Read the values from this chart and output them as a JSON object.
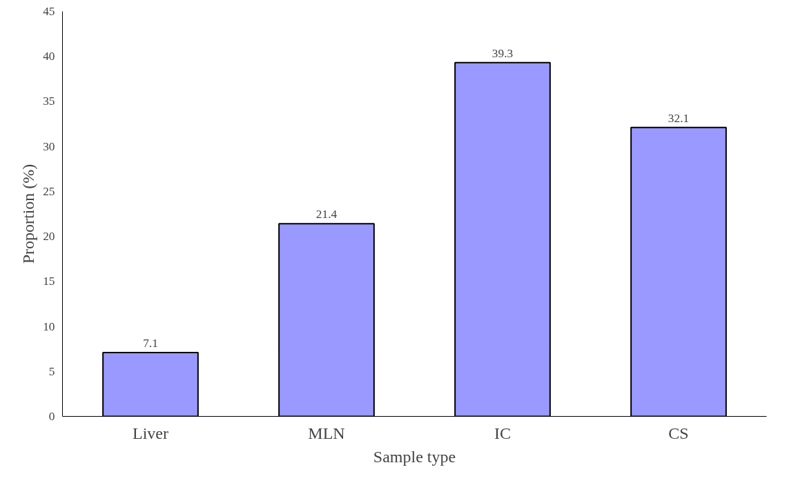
{
  "chart_data": {
    "type": "bar",
    "xlabel": "Sample type",
    "ylabel": "Proportion (%)",
    "categories": [
      "Liver",
      "MLN",
      "IC",
      "CS"
    ],
    "values": [
      7.1,
      21.4,
      39.3,
      32.1
    ],
    "color": "#9999ff",
    "ylim": [
      0,
      45
    ],
    "yticks": [
      0,
      5,
      10,
      15,
      20,
      25,
      30,
      35,
      40,
      45
    ],
    "data_labels": true
  }
}
